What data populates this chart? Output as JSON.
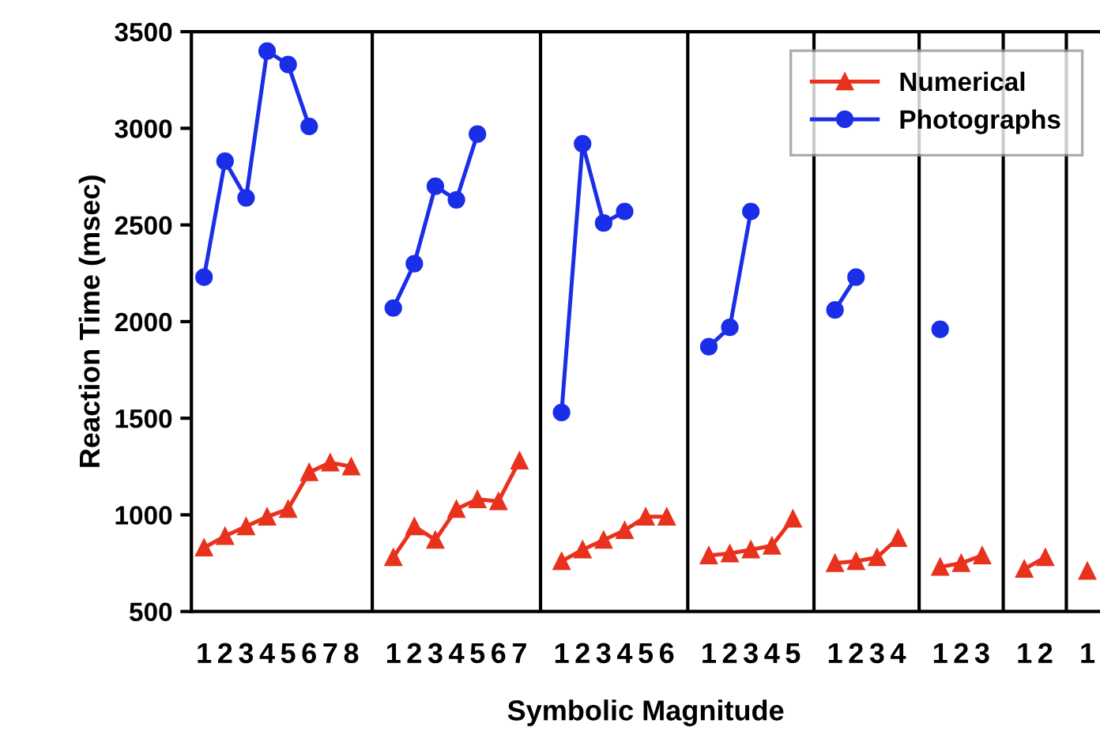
{
  "chart_data": {
    "type": "line",
    "xlabel": "Symbolic Magnitude",
    "ylabel": "Reaction Time (msec)",
    "categories": [
      "1",
      "2",
      "3",
      "4",
      "5",
      "6",
      "7",
      "8",
      null,
      "1",
      "2",
      "3",
      "4",
      "5",
      "6",
      "7",
      null,
      "1",
      "2",
      "3",
      "4",
      "5",
      "6",
      null,
      "1",
      "2",
      "3",
      "4",
      "5",
      null,
      "1",
      "2",
      "3",
      "4",
      null,
      "1",
      "2",
      "3",
      null,
      "1",
      "2",
      null,
      "1"
    ],
    "series": [
      {
        "name": "Numerical",
        "color": "#e8321e",
        "marker": "triangle",
        "values": [
          830,
          890,
          940,
          990,
          1030,
          1220,
          1270,
          1250,
          null,
          780,
          940,
          870,
          1030,
          1080,
          1070,
          1280,
          null,
          760,
          820,
          870,
          920,
          990,
          990,
          null,
          790,
          800,
          820,
          840,
          980,
          null,
          750,
          760,
          780,
          880,
          null,
          730,
          750,
          790,
          null,
          720,
          780,
          null,
          710
        ]
      },
      {
        "name": "Photographs",
        "color": "#1a2ee8",
        "marker": "circle",
        "values": [
          2230,
          2830,
          2640,
          3400,
          3330,
          3010,
          null,
          null,
          null,
          2070,
          2300,
          2700,
          2630,
          2970,
          null,
          null,
          null,
          1530,
          2920,
          2510,
          2570,
          null,
          null,
          null,
          1870,
          1970,
          2570,
          null,
          null,
          null,
          2060,
          2230,
          null,
          null,
          null,
          1960,
          null,
          null,
          null,
          null,
          null,
          null,
          null
        ]
      }
    ],
    "ylim": [
      500,
      3500
    ],
    "yticks": [
      500,
      1000,
      1500,
      2000,
      2500,
      3000,
      3500
    ],
    "grid": "x",
    "legend": "top right",
    "line_style": "solid"
  }
}
